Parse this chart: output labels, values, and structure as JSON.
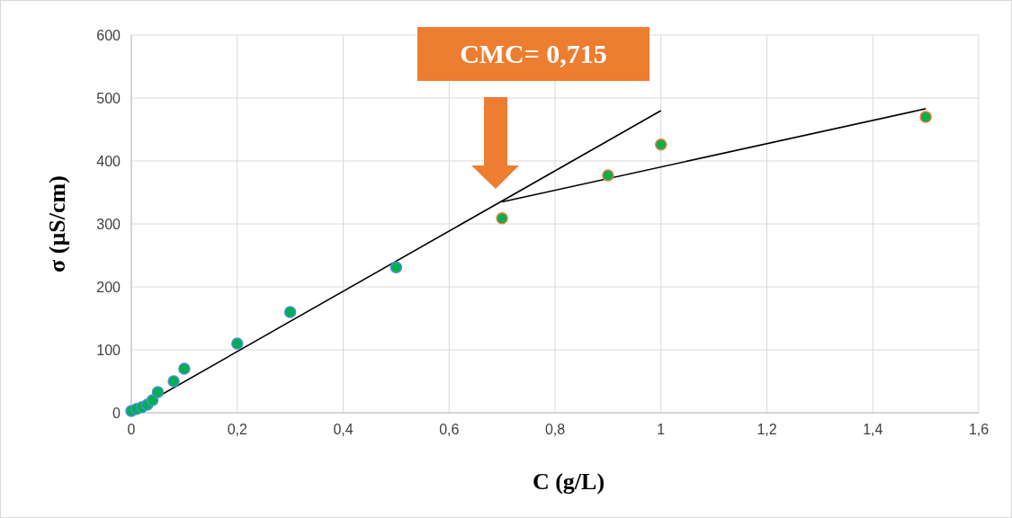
{
  "chart_data": {
    "type": "scatter",
    "xlabel": "C (g/L)",
    "ylabel": "σ (µS/cm)",
    "xlim": [
      0,
      1.6
    ],
    "ylim": [
      0,
      600
    ],
    "xticks": [
      0,
      {
        "value": 0.2,
        "label": "0,2"
      },
      {
        "value": 0.4,
        "label": "0,4"
      },
      {
        "value": 0.6,
        "label": "0,6"
      },
      {
        "value": 0.8,
        "label": "0,8"
      },
      1,
      {
        "value": 1.2,
        "label": "1,2"
      },
      {
        "value": 1.4,
        "label": "1,4"
      },
      {
        "value": 1.6,
        "label": "1,6"
      }
    ],
    "yticks": [
      0,
      100,
      200,
      300,
      400,
      500,
      600
    ],
    "grid": true,
    "annotations": [
      "CMC= 0,715"
    ],
    "series": [
      {
        "marker": "circle",
        "color": "#00b050",
        "x": [
          0,
          0.01,
          0.02,
          0.03,
          0.04,
          0.05,
          0.08,
          0.1,
          0.2,
          0.3,
          0.5
        ],
        "values": [
          3,
          6,
          9,
          13,
          20,
          33,
          50,
          70,
          110,
          160,
          231
        ]
      },
      {
        "marker": "circle",
        "color": "#00b050",
        "x": [
          0.7,
          0.9,
          1,
          1.5
        ],
        "values": [
          309,
          377,
          426,
          470
        ]
      },
      {
        "type": "line",
        "color": "#000000",
        "x": [
          0.005,
          1
        ],
        "values": [
          4,
          480
        ]
      },
      {
        "type": "line",
        "color": "#000000",
        "x": [
          0.7,
          1.5
        ],
        "values": [
          335,
          483
        ]
      }
    ]
  }
}
